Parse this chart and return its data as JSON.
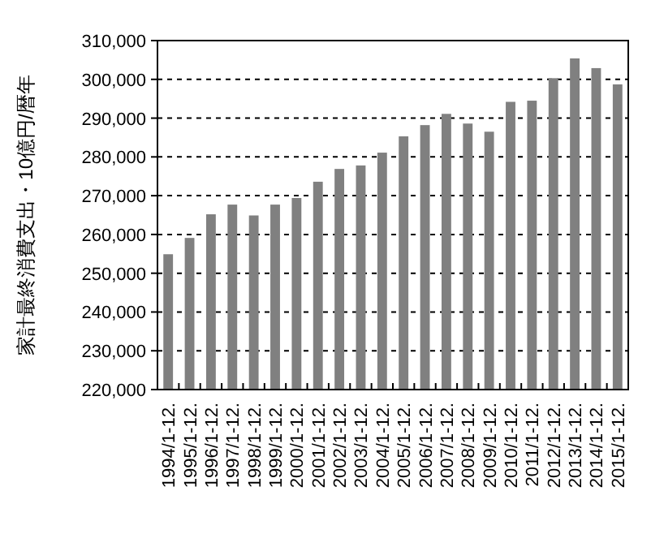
{
  "chart_data": {
    "type": "bar",
    "ylabel": "家計最終消費支出・10億円/暦年",
    "categories": [
      "1994/1-12.",
      "1995/1-12.",
      "1996/1-12.",
      "1997/1-12.",
      "1998/1-12.",
      "1999/1-12.",
      "2000/1-12.",
      "2001/1-12.",
      "2002/1-12.",
      "2003/1-12.",
      "2004/1-12.",
      "2005/1-12.",
      "2006/1-12.",
      "2007/1-12.",
      "2008/1-12.",
      "2009/1-12.",
      "2010/1-12.",
      "2011/1-12.",
      "2012/1-12.",
      "2013/1-12.",
      "2014/1-12.",
      "2015/1-12."
    ],
    "values": [
      254900,
      259100,
      265200,
      267700,
      264900,
      267700,
      269400,
      273600,
      276900,
      277800,
      281100,
      285300,
      288200,
      291100,
      288600,
      286500,
      294200,
      294500,
      300300,
      305400,
      302900,
      298700
    ],
    "color": "#808080",
    "ylim": [
      220000,
      310000
    ],
    "yticks": [
      {
        "value": 220000,
        "label": "220,000"
      },
      {
        "value": 230000,
        "label": "230,000"
      },
      {
        "value": 240000,
        "label": "240,000"
      },
      {
        "value": 250000,
        "label": "250,000"
      },
      {
        "value": 260000,
        "label": "260,000"
      },
      {
        "value": 270000,
        "label": "270,000"
      },
      {
        "value": 280000,
        "label": "280,000"
      },
      {
        "value": 290000,
        "label": "290,000"
      },
      {
        "value": 300000,
        "label": "300,000"
      },
      {
        "value": 310000,
        "label": "310,000"
      }
    ],
    "grid": "y"
  }
}
